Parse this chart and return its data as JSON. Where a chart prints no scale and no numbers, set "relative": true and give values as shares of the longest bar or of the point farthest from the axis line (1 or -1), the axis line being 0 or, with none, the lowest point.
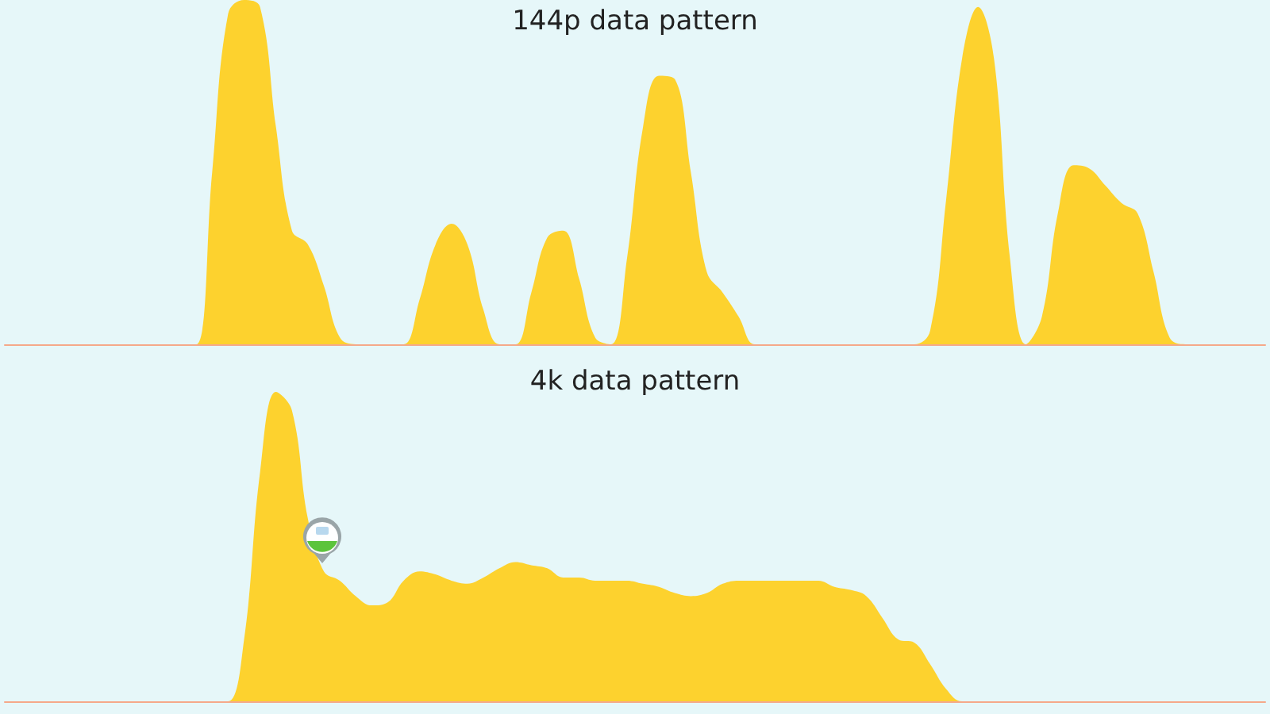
{
  "chart_data": [
    {
      "type": "area",
      "title": "144p data pattern",
      "relative": true,
      "color": "#fdd22e",
      "categories": [
        null,
        null,
        null,
        null,
        null,
        null,
        null,
        null,
        null,
        null,
        null,
        null,
        null,
        null,
        null,
        null,
        null,
        null,
        null,
        null,
        null,
        null,
        null,
        null,
        null,
        null,
        null,
        null,
        null,
        null,
        null,
        null,
        null,
        null,
        null,
        null,
        null,
        null,
        null,
        null,
        null,
        null,
        null,
        null,
        null,
        null,
        null,
        null,
        null,
        null,
        null,
        null,
        null,
        null,
        null,
        null,
        null,
        null,
        null,
        null,
        null,
        null,
        null,
        null,
        null,
        null,
        null,
        null,
        null,
        null,
        null,
        null,
        null,
        null,
        null,
        null,
        null,
        null,
        null,
        null
      ],
      "values": [
        0,
        0,
        0,
        0,
        0,
        0,
        0,
        0,
        0,
        0,
        0,
        0,
        0,
        0.5,
        0.96,
        1,
        0.98,
        0.63,
        0.33,
        0.29,
        0.17,
        0.02,
        0,
        0,
        0,
        0,
        0.13,
        0.29,
        0.35,
        0.29,
        0.1,
        0,
        0,
        0.15,
        0.31,
        0.33,
        0.19,
        0.02,
        0,
        0.25,
        0.63,
        0.78,
        0.77,
        0.5,
        0.21,
        0.15,
        0.08,
        0,
        0,
        0,
        0,
        0,
        0,
        0,
        0,
        0,
        0,
        0,
        0.04,
        0.42,
        0.83,
        0.98,
        0.83,
        0.25,
        0,
        0.08,
        0.38,
        0.52,
        0.51,
        0.46,
        0.41,
        0.38,
        0.21,
        0.02,
        0,
        0,
        0,
        0,
        0,
        0
      ]
    },
    {
      "type": "area",
      "title": "4k data pattern",
      "relative": true,
      "color": "#fdd22e",
      "categories": [
        null,
        null,
        null,
        null,
        null,
        null,
        null,
        null,
        null,
        null,
        null,
        null,
        null,
        null,
        null,
        null,
        null,
        null,
        null,
        null,
        null,
        null,
        null,
        null,
        null,
        null,
        null,
        null,
        null,
        null,
        null,
        null,
        null,
        null,
        null,
        null,
        null,
        null,
        null,
        null,
        null,
        null,
        null,
        null,
        null,
        null,
        null,
        null,
        null,
        null,
        null,
        null,
        null,
        null,
        null,
        null,
        null,
        null,
        null,
        null,
        null,
        null,
        null,
        null,
        null,
        null,
        null,
        null,
        null,
        null,
        null,
        null,
        null,
        null,
        null,
        null,
        null,
        null,
        null,
        null
      ],
      "values": [
        0,
        0,
        0,
        0,
        0,
        0,
        0,
        0,
        0,
        0,
        0,
        0,
        0,
        0,
        0,
        0.2,
        0.74,
        1,
        0.94,
        0.59,
        0.42,
        0.39,
        0.34,
        0.31,
        0.32,
        0.39,
        0.42,
        0.41,
        0.39,
        0.38,
        0.4,
        0.43,
        0.45,
        0.44,
        0.43,
        0.4,
        0.4,
        0.39,
        0.39,
        0.39,
        0.38,
        0.37,
        0.35,
        0.34,
        0.35,
        0.38,
        0.39,
        0.39,
        0.39,
        0.39,
        0.39,
        0.39,
        0.37,
        0.36,
        0.34,
        0.27,
        0.2,
        0.19,
        0.12,
        0.04,
        0,
        0,
        0,
        0,
        0,
        0,
        0,
        0,
        0,
        0,
        0,
        0,
        0,
        0,
        0,
        0,
        0,
        0,
        0,
        0
      ]
    }
  ]
}
